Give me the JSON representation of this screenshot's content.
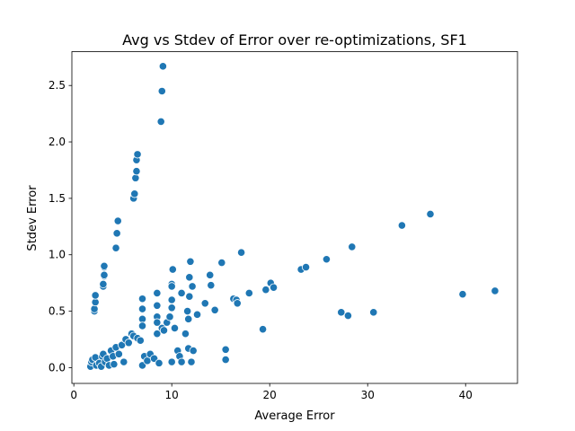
{
  "chart_data": {
    "type": "scatter",
    "title": "Avg vs Stdev of Error over re-optimizations, SF1",
    "xlabel": "Average Error",
    "ylabel": "Stdev Error",
    "xlim": [
      -0.2,
      45.3
    ],
    "ylim": [
      -0.14,
      2.8
    ],
    "xticks": [
      0,
      10,
      20,
      30,
      40
    ],
    "yticks": [
      0.0,
      0.5,
      1.0,
      1.5,
      2.0,
      2.5
    ],
    "xtick_labels": [
      "0",
      "10",
      "20",
      "30",
      "40"
    ],
    "ytick_labels": [
      "0.0",
      "0.5",
      "1.0",
      "1.5",
      "2.0",
      "2.5"
    ],
    "grid": false,
    "legend": "none",
    "marker_color": "#1f77b4",
    "marker_edge_color": "#ffffff",
    "points": [
      [
        1.7,
        0.01
      ],
      [
        1.8,
        0.05
      ],
      [
        1.9,
        0.07
      ],
      [
        2.2,
        0.09
      ],
      [
        2.3,
        0.02
      ],
      [
        2.6,
        0.04
      ],
      [
        2.8,
        0.01
      ],
      [
        2.9,
        0.1
      ],
      [
        3.0,
        0.12
      ],
      [
        3.2,
        0.05
      ],
      [
        3.4,
        0.08
      ],
      [
        3.6,
        0.02
      ],
      [
        3.8,
        0.15
      ],
      [
        4.0,
        0.1
      ],
      [
        4.1,
        0.03
      ],
      [
        4.3,
        0.18
      ],
      [
        4.6,
        0.12
      ],
      [
        4.9,
        0.2
      ],
      [
        5.1,
        0.05
      ],
      [
        5.3,
        0.25
      ],
      [
        5.6,
        0.22
      ],
      [
        5.9,
        0.3
      ],
      [
        6.1,
        0.28
      ],
      [
        6.5,
        0.26
      ],
      [
        6.8,
        0.24
      ],
      [
        7.0,
        0.02
      ],
      [
        7.2,
        0.1
      ],
      [
        7.5,
        0.06
      ],
      [
        7.8,
        0.12
      ],
      [
        8.2,
        0.08
      ],
      [
        8.5,
        0.3
      ],
      [
        8.7,
        0.04
      ],
      [
        9.0,
        0.35
      ],
      [
        9.2,
        0.33
      ],
      [
        9.5,
        0.4
      ],
      [
        9.8,
        0.45
      ],
      [
        10.0,
        0.05
      ],
      [
        10.3,
        0.35
      ],
      [
        10.6,
        0.15
      ],
      [
        10.8,
        0.1
      ],
      [
        11.0,
        0.05
      ],
      [
        11.4,
        0.3
      ],
      [
        11.7,
        0.17
      ],
      [
        12.0,
        0.05
      ],
      [
        12.2,
        0.15
      ],
      [
        2.1,
        0.5
      ],
      [
        2.1,
        0.52
      ],
      [
        2.2,
        0.58
      ],
      [
        2.2,
        0.64
      ],
      [
        3.0,
        0.72
      ],
      [
        3.0,
        0.74
      ],
      [
        3.1,
        0.81
      ],
      [
        3.1,
        0.82
      ],
      [
        3.1,
        0.89
      ],
      [
        3.1,
        0.9
      ],
      [
        4.3,
        1.06
      ],
      [
        4.4,
        1.19
      ],
      [
        4.5,
        1.3
      ],
      [
        6.1,
        1.5
      ],
      [
        6.2,
        1.54
      ],
      [
        6.3,
        1.68
      ],
      [
        6.4,
        1.74
      ],
      [
        6.4,
        1.84
      ],
      [
        6.5,
        1.89
      ],
      [
        8.9,
        2.18
      ],
      [
        9.0,
        2.45
      ],
      [
        9.1,
        2.67
      ],
      [
        7.0,
        0.61
      ],
      [
        7.0,
        0.52
      ],
      [
        7.0,
        0.43
      ],
      [
        7.0,
        0.37
      ],
      [
        8.5,
        0.66
      ],
      [
        8.5,
        0.55
      ],
      [
        8.5,
        0.45
      ],
      [
        8.5,
        0.4
      ],
      [
        10.0,
        0.74
      ],
      [
        10.0,
        0.72
      ],
      [
        10.0,
        0.6
      ],
      [
        10.0,
        0.53
      ],
      [
        10.1,
        0.87
      ],
      [
        11.0,
        0.66
      ],
      [
        11.6,
        0.5
      ],
      [
        11.8,
        0.8
      ],
      [
        11.8,
        0.63
      ],
      [
        11.7,
        0.43
      ],
      [
        11.9,
        0.94
      ],
      [
        12.1,
        0.72
      ],
      [
        12.6,
        0.47
      ],
      [
        13.4,
        0.57
      ],
      [
        13.9,
        0.82
      ],
      [
        14.0,
        0.73
      ],
      [
        14.4,
        0.51
      ],
      [
        15.1,
        0.93
      ],
      [
        15.5,
        0.16
      ],
      [
        15.5,
        0.07
      ],
      [
        16.3,
        0.61
      ],
      [
        16.6,
        0.6
      ],
      [
        16.7,
        0.57
      ],
      [
        17.1,
        1.02
      ],
      [
        17.9,
        0.66
      ],
      [
        19.3,
        0.34
      ],
      [
        19.6,
        0.69
      ],
      [
        20.1,
        0.75
      ],
      [
        20.4,
        0.71
      ],
      [
        23.2,
        0.87
      ],
      [
        23.7,
        0.89
      ],
      [
        25.8,
        0.96
      ],
      [
        27.3,
        0.49
      ],
      [
        28.0,
        0.46
      ],
      [
        28.4,
        1.07
      ],
      [
        30.6,
        0.49
      ],
      [
        33.5,
        1.26
      ],
      [
        36.4,
        1.36
      ],
      [
        39.7,
        0.65
      ],
      [
        43.0,
        0.68
      ]
    ]
  }
}
